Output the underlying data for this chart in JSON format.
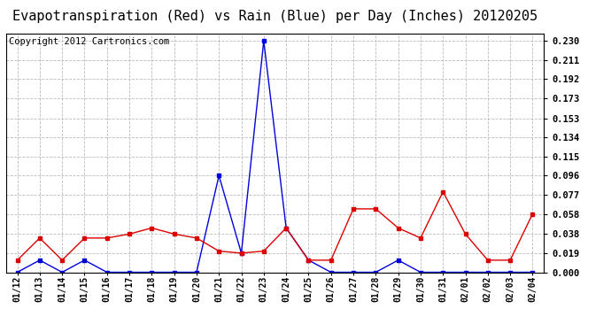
{
  "title": "Evapotranspiration (Red) vs Rain (Blue) per Day (Inches) 20120205",
  "copyright": "Copyright 2012 Cartronics.com",
  "x_labels": [
    "01/12",
    "01/13",
    "01/14",
    "01/15",
    "01/16",
    "01/17",
    "01/18",
    "01/19",
    "01/20",
    "01/21",
    "01/22",
    "01/23",
    "01/24",
    "01/25",
    "01/26",
    "01/27",
    "01/28",
    "01/29",
    "01/30",
    "01/31",
    "02/01",
    "02/02",
    "02/03",
    "02/04"
  ],
  "red_data": [
    0.012,
    0.034,
    0.012,
    0.034,
    0.034,
    0.038,
    0.044,
    0.038,
    0.034,
    0.021,
    0.019,
    0.021,
    0.044,
    0.012,
    0.012,
    0.063,
    0.063,
    0.044,
    0.034,
    0.08,
    0.038,
    0.012,
    0.012,
    0.058
  ],
  "blue_data": [
    0.0,
    0.012,
    0.0,
    0.012,
    0.0,
    0.0,
    0.0,
    0.0,
    0.0,
    0.096,
    0.019,
    0.23,
    0.044,
    0.012,
    0.0,
    0.0,
    0.0,
    0.012,
    0.0,
    0.0,
    0.0,
    0.0,
    0.0,
    0.0
  ],
  "y_ticks": [
    0.0,
    0.019,
    0.038,
    0.058,
    0.077,
    0.096,
    0.115,
    0.134,
    0.153,
    0.173,
    0.192,
    0.211,
    0.23
  ],
  "ylim": [
    0.0,
    0.2376
  ],
  "bg_color": "#ffffff",
  "plot_bg_color": "#ffffff",
  "grid_color": "#bbbbbb",
  "red_color": "#dd0000",
  "blue_color": "#0000dd",
  "title_fontsize": 11,
  "copyright_fontsize": 7.5,
  "tick_fontsize": 7,
  "ytick_fontsize": 7.5
}
